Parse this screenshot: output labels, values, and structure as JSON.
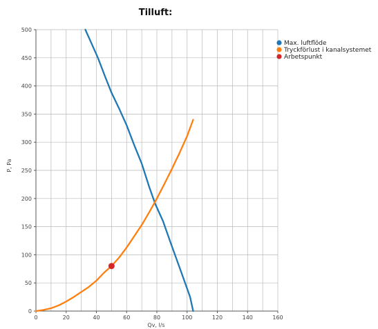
{
  "chart_data": {
    "type": "line",
    "title": "Tilluft:",
    "xlabel": "Qv, l/s",
    "ylabel": "P, Pa",
    "xlim": [
      0,
      160
    ],
    "ylim": [
      0,
      500
    ],
    "xticks": [
      0,
      20,
      40,
      60,
      80,
      100,
      120,
      140,
      160
    ],
    "yticks": [
      0,
      50,
      100,
      150,
      200,
      250,
      300,
      350,
      400,
      450,
      500
    ],
    "x_grid_step": 10,
    "grid": true,
    "legend_position": "top-right",
    "series": [
      {
        "name": "Max. luftflöde",
        "color": "#1f77b4",
        "points": [
          [
            32.7,
            500
          ],
          [
            36,
            480
          ],
          [
            41,
            450
          ],
          [
            46,
            415
          ],
          [
            50,
            388
          ],
          [
            55,
            360
          ],
          [
            60,
            330
          ],
          [
            65,
            295
          ],
          [
            70,
            262
          ],
          [
            75,
            220
          ],
          [
            79,
            190
          ],
          [
            84,
            160
          ],
          [
            89,
            122
          ],
          [
            94,
            85
          ],
          [
            98,
            55
          ],
          [
            102,
            25
          ],
          [
            104,
            0
          ]
        ]
      },
      {
        "name": "Tryckförlust i kanalsystemet",
        "color": "#ff7f0e",
        "points": [
          [
            0,
            0
          ],
          [
            5,
            2
          ],
          [
            10,
            5
          ],
          [
            15,
            10
          ],
          [
            20,
            17
          ],
          [
            25,
            25
          ],
          [
            30,
            34
          ],
          [
            35,
            43
          ],
          [
            40,
            54
          ],
          [
            45,
            68
          ],
          [
            50,
            80
          ],
          [
            55,
            95
          ],
          [
            60,
            113
          ],
          [
            65,
            133
          ],
          [
            70,
            153
          ],
          [
            75,
            176
          ],
          [
            80,
            200
          ],
          [
            85,
            226
          ],
          [
            90,
            253
          ],
          [
            95,
            281
          ],
          [
            100,
            311
          ],
          [
            104,
            340
          ]
        ]
      },
      {
        "name": "Arbetspunkt",
        "color": "#d62728",
        "marker": "point",
        "points": [
          [
            50,
            80
          ]
        ]
      }
    ]
  }
}
